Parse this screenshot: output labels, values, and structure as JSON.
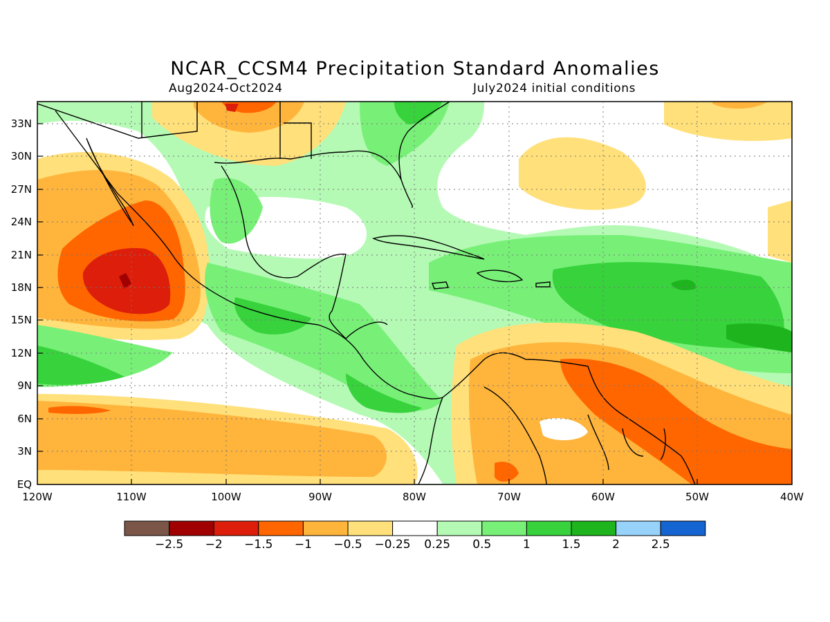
{
  "map": {
    "title": "NCAR_CCSM4 Precipitation Standard Anomalies",
    "period": "Aug2024-Oct2024",
    "init": "July2024 initial conditions",
    "lat_labels": [
      "33N",
      "30N",
      "27N",
      "24N",
      "21N",
      "18N",
      "15N",
      "12N",
      "9N",
      "6N",
      "3N",
      "EQ"
    ],
    "lon_labels": [
      "120W",
      "110W",
      "100W",
      "90W",
      "80W",
      "70W",
      "60W",
      "50W",
      "40W"
    ],
    "extent": {
      "lon_min": -120,
      "lon_max": -40,
      "lat_min": 0,
      "lat_max": 35
    }
  },
  "legend": {
    "colors": [
      "#7a5548",
      "#a00000",
      "#dc1e0a",
      "#ff6600",
      "#ffb43c",
      "#ffe07a",
      "#ffffff",
      "#b4fab4",
      "#78f078",
      "#37d23c",
      "#1eb41e",
      "#96d2fa",
      "#1464d2"
    ],
    "labels": [
      "-2.5",
      "-2",
      "-1.5",
      "-1",
      "-0.5",
      "-0.25",
      "0.25",
      "0.5",
      "1",
      "1.5",
      "2",
      "2.5"
    ]
  },
  "colors": {
    "dry_strong": "#dc1e0a",
    "dry_moderate": "#ff6600",
    "dry_light": "#ffb43c",
    "dry_weak": "#ffe07a",
    "wet_weak": "#b4fab4",
    "wet_light": "#78f078",
    "wet_moderate": "#37d23c",
    "wet_strong": "#1eb41e"
  }
}
